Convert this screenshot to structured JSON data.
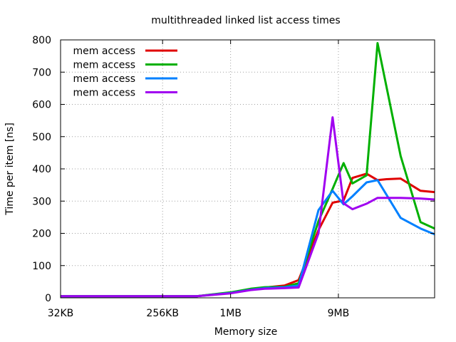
{
  "chart_data": {
    "type": "line",
    "title": "multithreaded linked list access times",
    "xlabel": "Memory size",
    "ylabel": "Time per item [ns]",
    "x_scale": "log2",
    "x_unit": "KB",
    "xlim": [
      32,
      65536
    ],
    "ylim": [
      0,
      800
    ],
    "y_ticks": [
      0,
      100,
      200,
      300,
      400,
      500,
      600,
      700,
      800
    ],
    "x_ticks": [
      {
        "value": 32,
        "label": "32KB"
      },
      {
        "value": 256,
        "label": "256KB"
      },
      {
        "value": 1024,
        "label": "1MB"
      },
      {
        "value": 9216,
        "label": "9MB"
      }
    ],
    "grid": true,
    "legend_position": "top-left",
    "series": [
      {
        "name": "mem access",
        "color": "#e00000",
        "points": [
          [
            32,
            5
          ],
          [
            64,
            5
          ],
          [
            128,
            5
          ],
          [
            256,
            5
          ],
          [
            512,
            5
          ],
          [
            1024,
            16
          ],
          [
            1536,
            26
          ],
          [
            2048,
            32
          ],
          [
            3072,
            38
          ],
          [
            4096,
            55
          ],
          [
            6144,
            210
          ],
          [
            8192,
            295
          ],
          [
            10240,
            302
          ],
          [
            12288,
            372
          ],
          [
            16384,
            385
          ],
          [
            20480,
            365
          ],
          [
            24576,
            368
          ],
          [
            32768,
            370
          ],
          [
            49152,
            332
          ],
          [
            65536,
            328
          ]
        ]
      },
      {
        "name": "mem access",
        "color": "#00b000",
        "points": [
          [
            32,
            5
          ],
          [
            64,
            5
          ],
          [
            128,
            5
          ],
          [
            256,
            5
          ],
          [
            512,
            5
          ],
          [
            1024,
            17
          ],
          [
            1536,
            28
          ],
          [
            2048,
            33
          ],
          [
            3072,
            34
          ],
          [
            4096,
            45
          ],
          [
            6144,
            238
          ],
          [
            8192,
            338
          ],
          [
            10240,
            418
          ],
          [
            12288,
            355
          ],
          [
            16384,
            380
          ],
          [
            20480,
            790
          ],
          [
            32768,
            440
          ],
          [
            49152,
            235
          ],
          [
            65536,
            215
          ]
        ]
      },
      {
        "name": "mem access",
        "color": "#0080ff",
        "points": [
          [
            32,
            5
          ],
          [
            64,
            5
          ],
          [
            128,
            5
          ],
          [
            256,
            5
          ],
          [
            512,
            5
          ],
          [
            1024,
            15
          ],
          [
            1536,
            25
          ],
          [
            2048,
            30
          ],
          [
            3072,
            33
          ],
          [
            4096,
            38
          ],
          [
            6144,
            272
          ],
          [
            8192,
            332
          ],
          [
            10240,
            290
          ],
          [
            12288,
            315
          ],
          [
            16384,
            358
          ],
          [
            20480,
            365
          ],
          [
            32768,
            248
          ],
          [
            49152,
            215
          ],
          [
            65536,
            197
          ]
        ]
      },
      {
        "name": "mem access",
        "color": "#a000f0",
        "points": [
          [
            32,
            5
          ],
          [
            64,
            5
          ],
          [
            128,
            5
          ],
          [
            256,
            5
          ],
          [
            512,
            5
          ],
          [
            1024,
            14
          ],
          [
            1536,
            24
          ],
          [
            2048,
            28
          ],
          [
            3072,
            30
          ],
          [
            4096,
            32
          ],
          [
            6144,
            200
          ],
          [
            8192,
            560
          ],
          [
            10240,
            293
          ],
          [
            12288,
            275
          ],
          [
            16384,
            292
          ],
          [
            20480,
            310
          ],
          [
            32768,
            310
          ],
          [
            49152,
            308
          ],
          [
            65536,
            305
          ]
        ]
      }
    ]
  }
}
